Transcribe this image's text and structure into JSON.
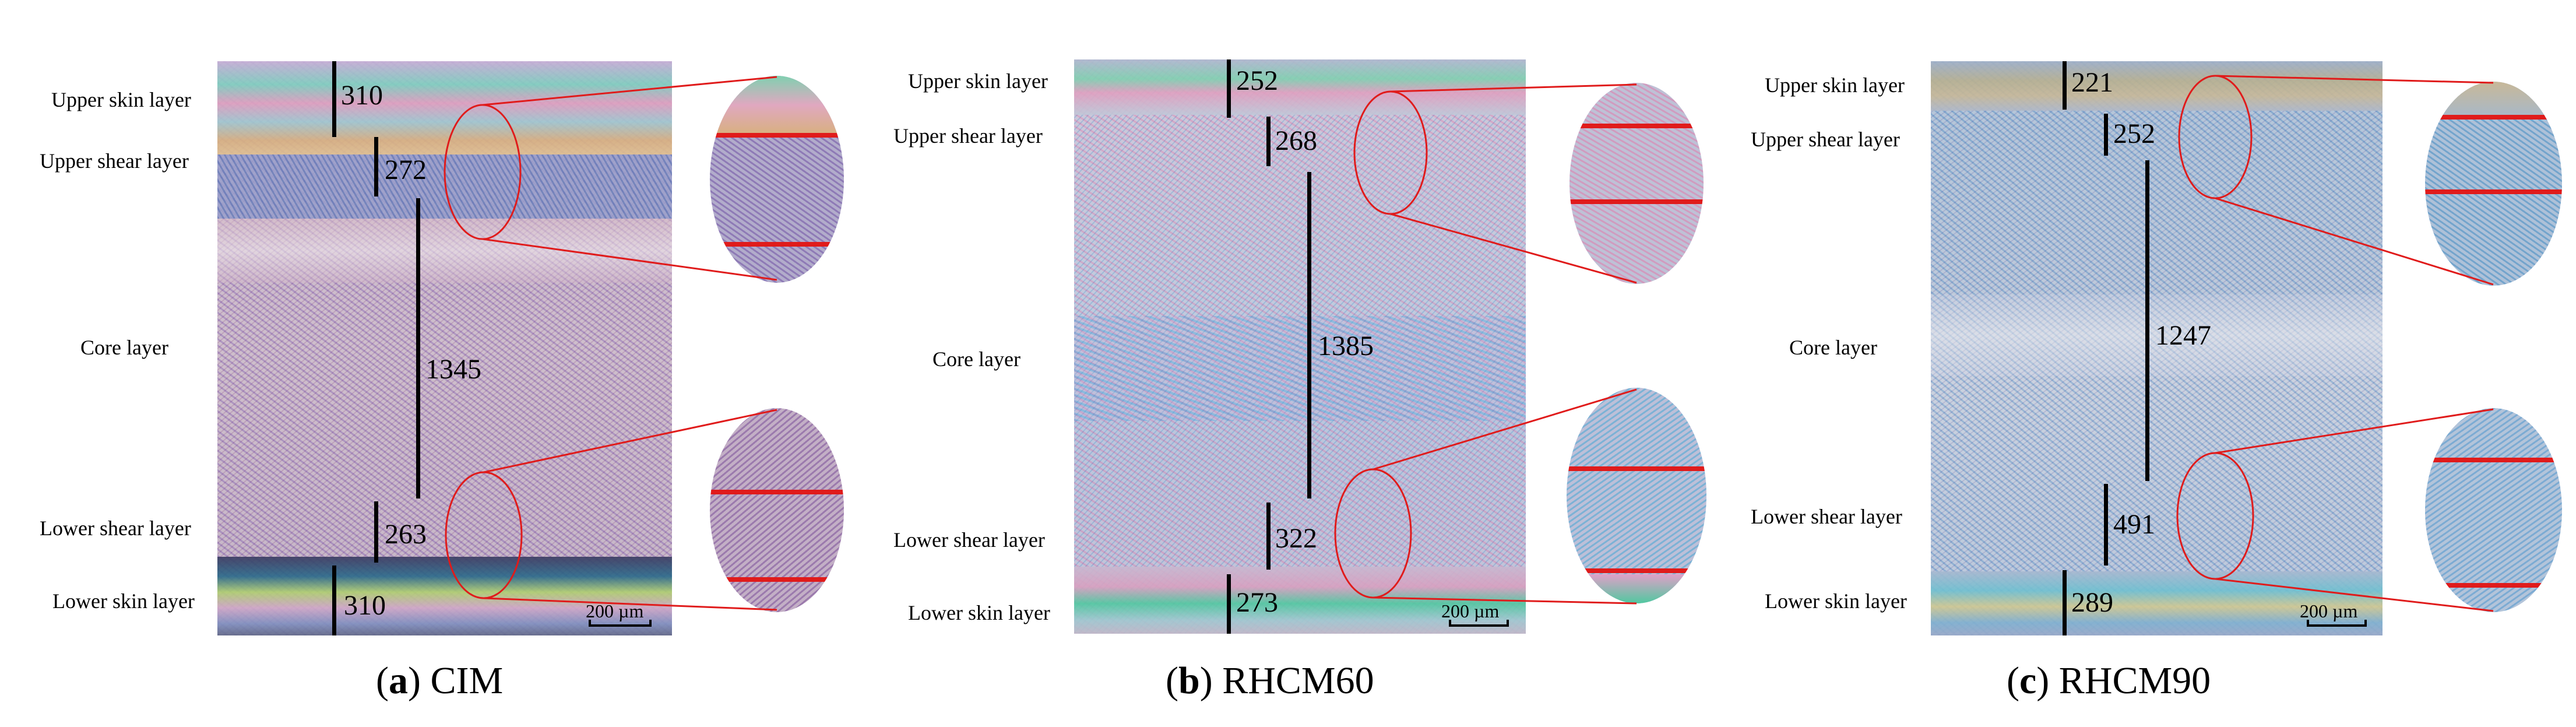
{
  "panels": [
    {
      "id": "a",
      "caption_letter": "a",
      "caption_text": "CIM",
      "layers": {
        "upper_skin": "Upper skin layer",
        "upper_shear": "Upper shear layer",
        "core": "Core layer",
        "lower_shear": "Lower shear layer",
        "lower_skin": "Lower skin layer"
      },
      "thickness": {
        "upper_skin": "310",
        "upper_shear": "272",
        "core": "1345",
        "lower_shear": "263",
        "lower_skin": "310"
      },
      "scale_label": "200 µm"
    },
    {
      "id": "b",
      "caption_letter": "b",
      "caption_text": "RHCM60",
      "layers": {
        "upper_skin": "Upper skin layer",
        "upper_shear": "Upper shear layer",
        "core": "Core layer",
        "lower_shear": "Lower shear layer",
        "lower_skin": "Lower skin layer"
      },
      "thickness": {
        "upper_skin": "252",
        "upper_shear": "268",
        "core": "1385",
        "lower_shear": "322",
        "lower_skin": "273"
      },
      "scale_label": "200 µm"
    },
    {
      "id": "c",
      "caption_letter": "c",
      "caption_text": "RHCM90",
      "layers": {
        "upper_skin": "Upper skin layer",
        "upper_shear": "Upper shear layer",
        "core": "Core layer",
        "lower_shear": "Lower shear layer",
        "lower_skin": "Lower skin layer"
      },
      "thickness": {
        "upper_skin": "221",
        "upper_shear": "252",
        "core": "1247",
        "lower_shear": "491",
        "lower_skin": "289"
      },
      "scale_label": "200 µm"
    }
  ],
  "colors": {
    "highlight": "#e01b1b",
    "thickness_line": "#000000"
  }
}
